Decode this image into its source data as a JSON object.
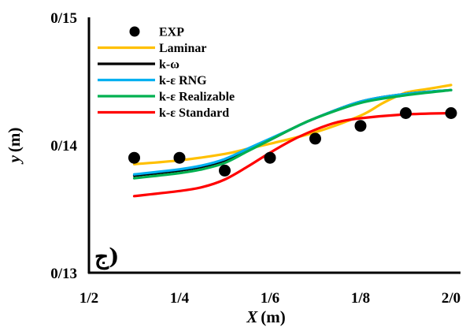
{
  "chart_data": {
    "type": "line",
    "title": "",
    "xlabel": "X",
    "xlabel_unit": "(m)",
    "ylabel": "y",
    "ylabel_unit": "(m)",
    "panel_label": "ج)",
    "xlim": [
      1.2,
      2.0
    ],
    "ylim": [
      0.13,
      0.15
    ],
    "x_ticks": [
      {
        "value": 1.2,
        "label": "1/2"
      },
      {
        "value": 1.4,
        "label": "1/4"
      },
      {
        "value": 1.6,
        "label": "1/6"
      },
      {
        "value": 1.8,
        "label": "1/8"
      },
      {
        "value": 2.0,
        "label": "2/0"
      }
    ],
    "y_ticks": [
      {
        "value": 0.13,
        "label": "0/13"
      },
      {
        "value": 0.14,
        "label": "0/14"
      },
      {
        "value": 0.15,
        "label": "0/15"
      }
    ],
    "grid": false,
    "legend_position": "top-left",
    "series": [
      {
        "name": "EXP",
        "type": "scatter",
        "color": "#000000",
        "x": [
          1.3,
          1.4,
          1.5,
          1.6,
          1.7,
          1.8,
          1.9,
          2.0
        ],
        "y": [
          0.139,
          0.139,
          0.138,
          0.139,
          0.1405,
          0.1415,
          0.1425,
          0.1425
        ]
      },
      {
        "name": "Laminar",
        "type": "line",
        "color": "#FFC000",
        "x": [
          1.3,
          1.4,
          1.5,
          1.55,
          1.6,
          1.7,
          1.8,
          1.85,
          1.9,
          1.95,
          2.0
        ],
        "y": [
          0.1385,
          0.1388,
          0.1393,
          0.1397,
          0.1401,
          0.141,
          0.1423,
          0.1433,
          0.1441,
          0.1444,
          0.1447
        ]
      },
      {
        "name": "k-ω",
        "type": "line",
        "color": "#000000",
        "x": [
          1.3,
          1.4,
          1.45,
          1.5,
          1.55,
          1.6,
          1.65,
          1.7,
          1.8,
          1.9,
          2.0
        ],
        "y": [
          0.1376,
          0.138,
          0.1383,
          0.1388,
          0.1396,
          0.1404,
          0.1413,
          0.1421,
          0.1434,
          0.144,
          0.1443
        ]
      },
      {
        "name": "k-ε RNG",
        "type": "line",
        "color": "#00B0F0",
        "x": [
          1.3,
          1.4,
          1.45,
          1.5,
          1.55,
          1.6,
          1.65,
          1.7,
          1.8,
          1.9,
          2.0
        ],
        "y": [
          0.1377,
          0.1381,
          0.1384,
          0.1389,
          0.1397,
          0.1405,
          0.1413,
          0.1421,
          0.1434,
          0.144,
          0.1443
        ]
      },
      {
        "name": "k-ε Realizable",
        "type": "line",
        "color": "#00B050",
        "x": [
          1.3,
          1.4,
          1.45,
          1.5,
          1.55,
          1.6,
          1.65,
          1.7,
          1.8,
          1.9,
          2.0
        ],
        "y": [
          0.1374,
          0.1378,
          0.1381,
          0.1386,
          0.1395,
          0.1404,
          0.1413,
          0.1421,
          0.1433,
          0.1439,
          0.1443
        ]
      },
      {
        "name": "k-ε Standard",
        "type": "line",
        "color": "#FF0000",
        "x": [
          1.3,
          1.4,
          1.45,
          1.5,
          1.55,
          1.6,
          1.65,
          1.7,
          1.75,
          1.8,
          1.9,
          2.0
        ],
        "y": [
          0.136,
          0.1364,
          0.1367,
          0.1373,
          0.1383,
          0.1394,
          0.1404,
          0.1412,
          0.1418,
          0.1421,
          0.1424,
          0.1425
        ]
      }
    ]
  }
}
